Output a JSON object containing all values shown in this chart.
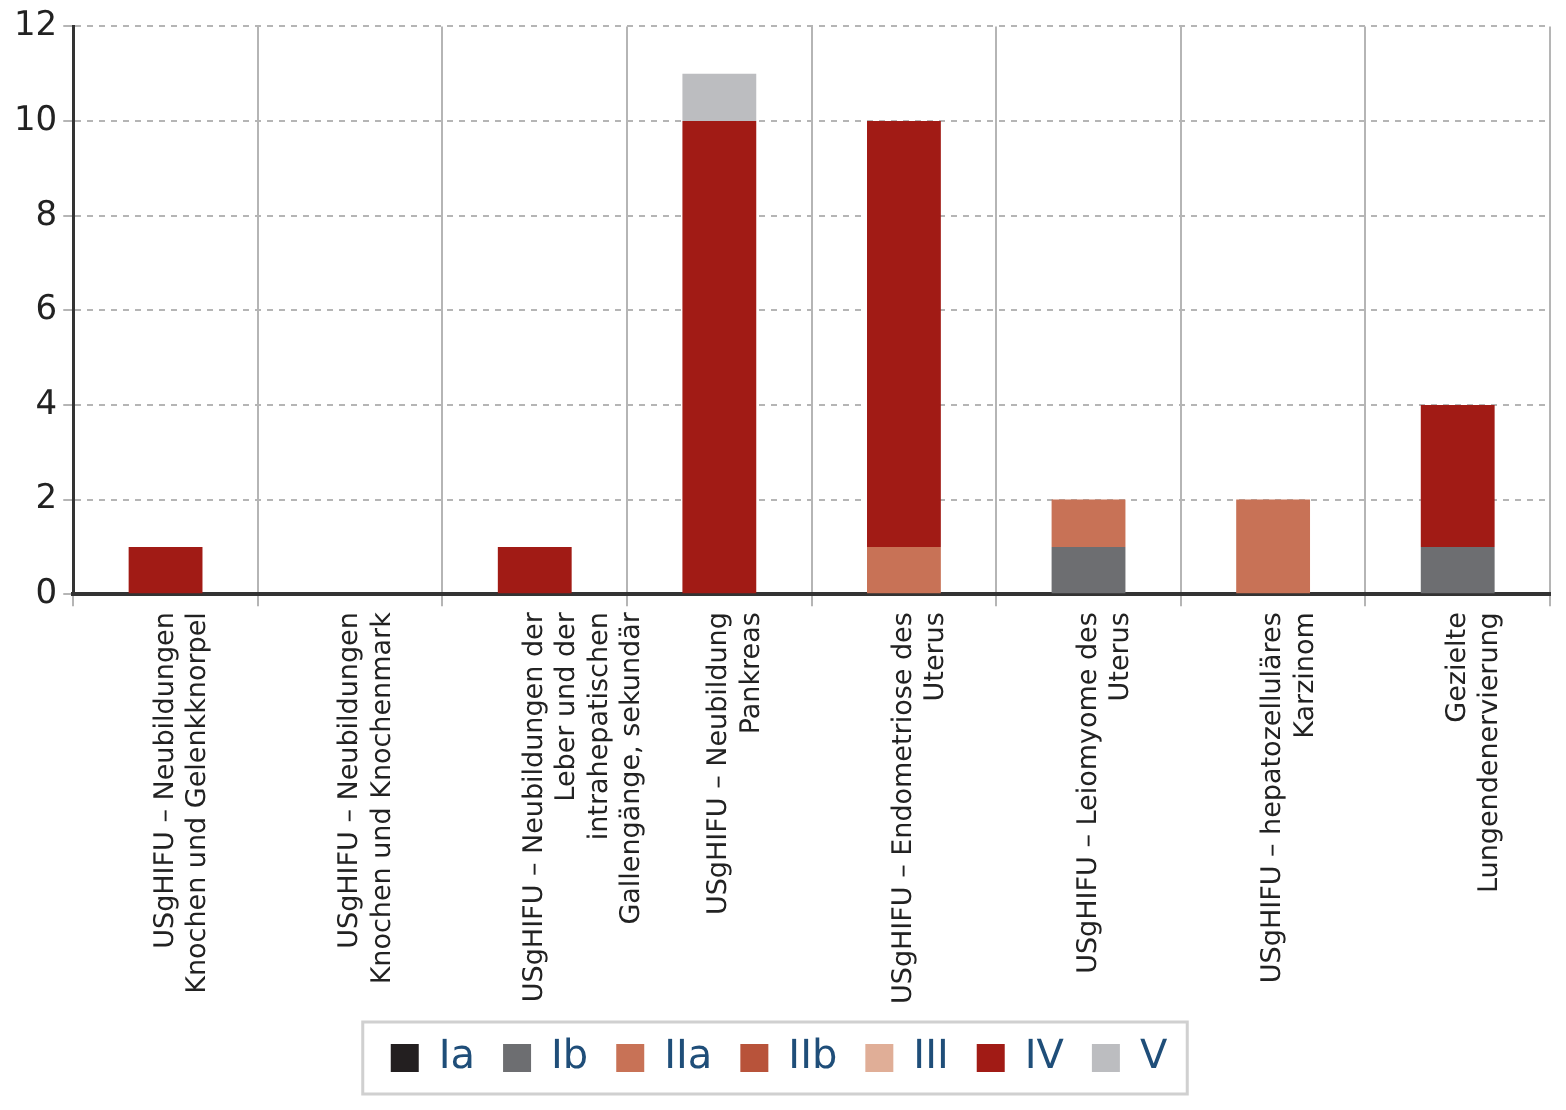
{
  "chart_data": {
    "type": "bar",
    "stacked": true,
    "categories": [
      "USgHIFU – Neubildungen\nKnochen und Gelenkknorpel",
      "USgHIFU – Neubildungen\nKnochen und Knochenmark",
      "USgHIFU – Neubildungen der\nLeber und der\nintrahepatischen\nGallengänge, sekundär",
      "USgHIFU – Neubildung\nPankreas",
      "USgHIFU – Endometriose des\nUterus",
      "USgHIFU – Leiomyome des\nUterus",
      "USgHIFU – hepatozelluläres\nKarzinom",
      "Gezielte\nLungendenervierung"
    ],
    "series": [
      {
        "name": "Ia",
        "color": "#231f20",
        "values": [
          0,
          0,
          0,
          0,
          0,
          0,
          0,
          0
        ]
      },
      {
        "name": "Ib",
        "color": "#6d6e71",
        "values": [
          0,
          0,
          0,
          0,
          0,
          1,
          0,
          1
        ]
      },
      {
        "name": "IIa",
        "color": "#c87256",
        "values": [
          0,
          0,
          0,
          0,
          1,
          1,
          2,
          0
        ]
      },
      {
        "name": "IIb",
        "color": "#b8533a",
        "values": [
          0,
          0,
          0,
          0,
          0,
          0,
          0,
          0
        ]
      },
      {
        "name": "III",
        "color": "#e0ae97",
        "values": [
          0,
          0,
          0,
          0,
          0,
          0,
          0,
          0
        ]
      },
      {
        "name": "IV",
        "color": "#a11b15",
        "values": [
          1,
          0,
          1,
          10,
          9,
          0,
          0,
          3
        ]
      },
      {
        "name": "V",
        "color": "#bcbdc0",
        "values": [
          0,
          0,
          0,
          1,
          0,
          0,
          0,
          0
        ]
      }
    ],
    "ylim": [
      0,
      12
    ],
    "yticks": [
      0,
      2,
      4,
      6,
      8,
      10,
      12
    ],
    "grid": true,
    "legend": "bottom"
  }
}
